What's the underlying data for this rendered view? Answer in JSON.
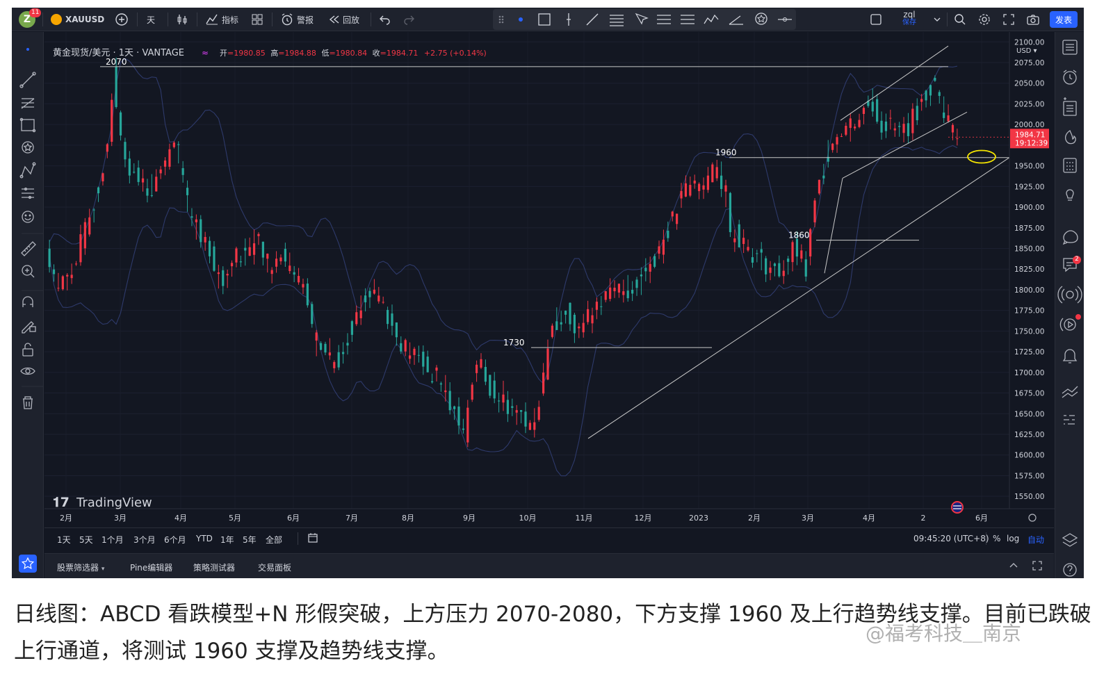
{
  "header": {
    "avatar_letter": "Z",
    "notif_count": "11",
    "symbol": "XAUUSD",
    "interval": "天",
    "indicators_label": "指标",
    "alert_label": "警报",
    "replay_label": "回放",
    "user_name": "zql",
    "user_sub": "保存",
    "publish_label": "发表"
  },
  "legend": {
    "title": "黄金现货/美元 · 1天 · VANTAGE",
    "open_label": "开",
    "open": "=1980.85",
    "high_label": "高",
    "high": "=1984.88",
    "low_label": "低",
    "low": "=1980.84",
    "close_label": "收",
    "close": "=1984.71",
    "change": "+2.75 (+0.14%)"
  },
  "price_axis": {
    "currency": "USD",
    "price_tag": "1984.71",
    "countdown": "19:12:39"
  },
  "chart_data": {
    "type": "candlestick",
    "ylim": [
      1535,
      2112
    ],
    "yticks": [
      2100,
      2075,
      2050,
      2025,
      2000,
      1975,
      1950,
      1925,
      1900,
      1875,
      1850,
      1825,
      1800,
      1775,
      1750,
      1725,
      1700,
      1675,
      1650,
      1625,
      1600,
      1575,
      1550
    ],
    "ytick_labels": [
      "2100.00",
      "2075.00",
      "2050.00",
      "2025.00",
      "2000.00",
      "",
      "1950.00",
      "1925.00",
      "1900.00",
      "1875.00",
      "1850.00",
      "1825.00",
      "1800.00",
      "1775.00",
      "1750.00",
      "1725.00",
      "1700.00",
      "1675.00",
      "1650.00",
      "1625.00",
      "1600.00",
      "1575.00",
      "1550.00"
    ],
    "xtick_labels": [
      "2月",
      "3月",
      "4月",
      "5月",
      "6月",
      "7月",
      "8月",
      "9月",
      "10月",
      "11月",
      "12月",
      "2023",
      "2月",
      "3月",
      "4月",
      "2",
      "6月"
    ],
    "price_path": [
      [
        0,
        1850
      ],
      [
        8,
        1800
      ],
      [
        18,
        1830
      ],
      [
        28,
        1880
      ],
      [
        36,
        1930
      ],
      [
        42,
        1990
      ],
      [
        45,
        2060
      ],
      [
        50,
        1980
      ],
      [
        58,
        1940
      ],
      [
        68,
        1920
      ],
      [
        76,
        1930
      ],
      [
        84,
        1980
      ],
      [
        90,
        1960
      ],
      [
        96,
        1890
      ],
      [
        104,
        1870
      ],
      [
        112,
        1840
      ],
      [
        118,
        1810
      ],
      [
        126,
        1840
      ],
      [
        134,
        1850
      ],
      [
        142,
        1860
      ],
      [
        150,
        1830
      ],
      [
        160,
        1840
      ],
      [
        168,
        1810
      ],
      [
        174,
        1800
      ],
      [
        180,
        1740
      ],
      [
        190,
        1720
      ],
      [
        196,
        1710
      ],
      [
        204,
        1750
      ],
      [
        212,
        1780
      ],
      [
        220,
        1800
      ],
      [
        226,
        1790
      ],
      [
        234,
        1750
      ],
      [
        242,
        1730
      ],
      [
        250,
        1720
      ],
      [
        258,
        1700
      ],
      [
        266,
        1690
      ],
      [
        272,
        1660
      ],
      [
        278,
        1640
      ],
      [
        282,
        1625
      ],
      [
        290,
        1720
      ],
      [
        296,
        1690
      ],
      [
        304,
        1670
      ],
      [
        312,
        1660
      ],
      [
        320,
        1650
      ],
      [
        326,
        1640
      ],
      [
        332,
        1660
      ],
      [
        336,
        1700
      ],
      [
        342,
        1760
      ],
      [
        350,
        1775
      ],
      [
        356,
        1760
      ],
      [
        364,
        1760
      ],
      [
        370,
        1790
      ],
      [
        378,
        1790
      ],
      [
        386,
        1800
      ],
      [
        394,
        1800
      ],
      [
        402,
        1820
      ],
      [
        410,
        1840
      ],
      [
        418,
        1870
      ],
      [
        424,
        1890
      ],
      [
        430,
        1920
      ],
      [
        438,
        1930
      ],
      [
        446,
        1935
      ],
      [
        452,
        1945
      ],
      [
        458,
        1920
      ],
      [
        462,
        1870
      ],
      [
        470,
        1860
      ],
      [
        478,
        1840
      ],
      [
        486,
        1830
      ],
      [
        492,
        1820
      ],
      [
        498,
        1830
      ],
      [
        504,
        1850
      ],
      [
        508,
        1840
      ],
      [
        512,
        1820
      ],
      [
        516,
        1880
      ],
      [
        520,
        1920
      ],
      [
        526,
        1960
      ],
      [
        532,
        1990
      ],
      [
        540,
        2000
      ],
      [
        548,
        2010
      ],
      [
        556,
        2030
      ],
      [
        562,
        2000
      ],
      [
        568,
        2000
      ],
      [
        574,
        1990
      ],
      [
        582,
        2000
      ],
      [
        588,
        2020
      ],
      [
        594,
        2040
      ],
      [
        598,
        2050
      ],
      [
        604,
        2020
      ],
      [
        610,
        2000
      ],
      [
        614,
        1985
      ]
    ],
    "levels": [
      {
        "label": "2070",
        "value": 2070
      },
      {
        "label": "1960",
        "value": 1960
      },
      {
        "label": "1860",
        "value": 1860
      },
      {
        "label": "1730",
        "value": 1730
      }
    ],
    "watermark": "TradingView"
  },
  "range_buttons": [
    "1天",
    "5天",
    "1个月",
    "3个月",
    "6个月",
    "YTD",
    "1年",
    "5年",
    "全部"
  ],
  "clock": "09:45:20 (UTC+8)",
  "axis_opts": {
    "percent": "%",
    "log": "log",
    "auto": "自动"
  },
  "panels": [
    "股票筛选器",
    "Pine编辑器",
    "策略测试器",
    "交易面板"
  ],
  "right_badge": "2",
  "caption": "日线图：ABCD 看跌模型+N 形假突破，上方压力 2070-2080，下方支撑 1960 及上行趋势线支撑。目前已跌破上行通道，将测试 1960 支撑及趋势线支撑。",
  "weibo_watermark": "@福考科技＿南京"
}
